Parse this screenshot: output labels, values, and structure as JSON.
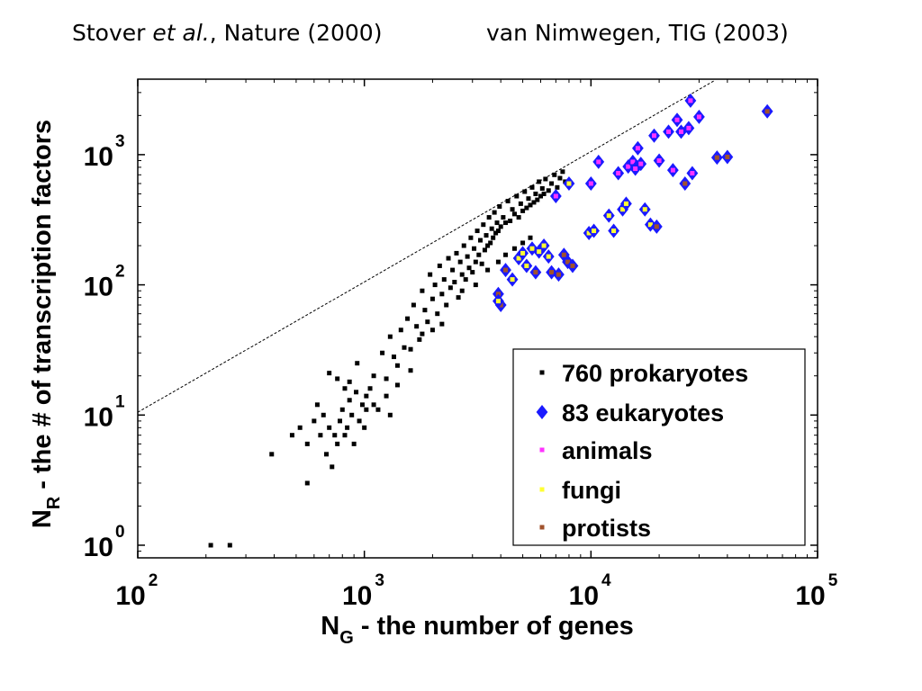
{
  "caption": {
    "left_author": "Stover",
    "left_etal": "et al.",
    "left_rest": ", Nature (2000)",
    "right": "van Nimwegen, TIG (2003)"
  },
  "colors": {
    "prokaryote": "#000000",
    "eukaryote": "#1a1aff",
    "animals": "#ff33ff",
    "fungi": "#ffff33",
    "protists": "#a0522d",
    "reference_line": "#000000"
  },
  "chart_data": {
    "type": "scatter",
    "x_scale": "log",
    "y_scale": "log",
    "xlim": [
      100,
      100000
    ],
    "ylim": [
      0.8,
      3800
    ],
    "grid": false,
    "legend_position": "bottom-right",
    "xlabel": {
      "main": "N",
      "sub": "G",
      "rest": " - the number of genes"
    },
    "ylabel": {
      "main": "N",
      "sub": "R",
      "rest": " - the # of transcription factors"
    },
    "x_ticks": [
      {
        "value": 100,
        "base": "10",
        "exp": "2"
      },
      {
        "value": 1000,
        "base": "10",
        "exp": "3"
      },
      {
        "value": 10000,
        "base": "10",
        "exp": "4"
      },
      {
        "value": 100000,
        "base": "10",
        "exp": "5"
      }
    ],
    "y_ticks": [
      {
        "value": 1,
        "base": "10",
        "exp": "0"
      },
      {
        "value": 10,
        "base": "10",
        "exp": "1"
      },
      {
        "value": 100,
        "base": "10",
        "exp": "2"
      },
      {
        "value": 1000,
        "base": "10",
        "exp": "3"
      }
    ],
    "reference_line": {
      "style": "dashed",
      "points": [
        [
          100,
          10.5
        ],
        [
          35000,
          3700
        ]
      ]
    },
    "legend": [
      {
        "label": "760 prokaryotes",
        "marker": "square",
        "color": "#000000"
      },
      {
        "label": "83 eukaryotes",
        "marker": "diamond",
        "color": "#1a1aff"
      },
      {
        "label": "animals",
        "marker": "square",
        "color": "#ff33ff"
      },
      {
        "label": "fungi",
        "marker": "square",
        "color": "#ffff33"
      },
      {
        "label": "protists",
        "marker": "square",
        "color": "#a0522d"
      }
    ],
    "series": [
      {
        "name": "760 prokaryotes",
        "marker": "square",
        "sample": "representative subset",
        "points": [
          [
            210,
            1
          ],
          [
            255,
            1
          ],
          [
            390,
            5
          ],
          [
            560,
            3
          ],
          [
            480,
            7
          ],
          [
            520,
            8
          ],
          [
            560,
            6
          ],
          [
            600,
            9
          ],
          [
            620,
            12
          ],
          [
            640,
            7
          ],
          [
            660,
            10
          ],
          [
            680,
            5
          ],
          [
            700,
            8
          ],
          [
            720,
            4
          ],
          [
            740,
            7
          ],
          [
            760,
            6
          ],
          [
            780,
            9
          ],
          [
            800,
            11
          ],
          [
            820,
            7
          ],
          [
            840,
            8
          ],
          [
            860,
            13
          ],
          [
            880,
            10
          ],
          [
            900,
            6
          ],
          [
            920,
            15
          ],
          [
            950,
            9
          ],
          [
            980,
            12
          ],
          [
            1000,
            8
          ],
          [
            1020,
            14
          ],
          [
            700,
            21
          ],
          [
            760,
            19
          ],
          [
            820,
            16
          ],
          [
            860,
            18
          ],
          [
            930,
            25
          ],
          [
            1020,
            11
          ],
          [
            1060,
            16
          ],
          [
            1100,
            20
          ],
          [
            1150,
            11
          ],
          [
            1200,
            30
          ],
          [
            1250,
            14
          ],
          [
            1300,
            40
          ],
          [
            1350,
            28
          ],
          [
            1400,
            17
          ],
          [
            1450,
            45
          ],
          [
            1500,
            33
          ],
          [
            1550,
            55
          ],
          [
            1600,
            22
          ],
          [
            1650,
            70
          ],
          [
            1700,
            48
          ],
          [
            1750,
            38
          ],
          [
            1800,
            90
          ],
          [
            1850,
            64
          ],
          [
            1900,
            52
          ],
          [
            1950,
            120
          ],
          [
            2000,
            78
          ],
          [
            2050,
            100
          ],
          [
            2100,
            60
          ],
          [
            2150,
            140
          ],
          [
            2200,
            85
          ],
          [
            2250,
            110
          ],
          [
            2300,
            70
          ],
          [
            2350,
            160
          ],
          [
            2400,
            95
          ],
          [
            2450,
            130
          ],
          [
            2500,
            105
          ],
          [
            2550,
            175
          ],
          [
            2600,
            80
          ],
          [
            2650,
            150
          ],
          [
            2700,
            120
          ],
          [
            2750,
            200
          ],
          [
            2800,
            110
          ],
          [
            2850,
            165
          ],
          [
            2900,
            135
          ],
          [
            2950,
            230
          ],
          [
            3000,
            125
          ],
          [
            3050,
            190
          ],
          [
            3100,
            150
          ],
          [
            3150,
            260
          ],
          [
            3200,
            170
          ],
          [
            3250,
            220
          ],
          [
            3300,
            145
          ],
          [
            3350,
            290
          ],
          [
            3400,
            185
          ],
          [
            3450,
            240
          ],
          [
            3500,
            200
          ],
          [
            3550,
            330
          ],
          [
            3600,
            210
          ],
          [
            3650,
            270
          ],
          [
            3700,
            230
          ],
          [
            3750,
            360
          ],
          [
            3800,
            250
          ],
          [
            3850,
            300
          ],
          [
            3900,
            260
          ],
          [
            3950,
            400
          ],
          [
            4000,
            280
          ],
          [
            4100,
            330
          ],
          [
            4200,
            300
          ],
          [
            4300,
            440
          ],
          [
            4400,
            310
          ],
          [
            4500,
            380
          ],
          [
            4600,
            350
          ],
          [
            4700,
            480
          ],
          [
            4800,
            330
          ],
          [
            4900,
            420
          ],
          [
            5000,
            370
          ],
          [
            5100,
            520
          ],
          [
            5200,
            390
          ],
          [
            5300,
            460
          ],
          [
            5400,
            410
          ],
          [
            5500,
            560
          ],
          [
            5600,
            430
          ],
          [
            5700,
            500
          ],
          [
            5800,
            450
          ],
          [
            5900,
            620
          ],
          [
            6000,
            480
          ],
          [
            6100,
            550
          ],
          [
            6200,
            500
          ],
          [
            6300,
            650
          ],
          [
            6500,
            530
          ],
          [
            6700,
            600
          ],
          [
            6900,
            700
          ],
          [
            7100,
            560
          ],
          [
            7300,
            660
          ],
          [
            7500,
            740
          ],
          [
            7700,
            620
          ],
          [
            2700,
            90
          ],
          [
            3100,
            100
          ],
          [
            3500,
            130
          ],
          [
            3900,
            150
          ],
          [
            4200,
            170
          ],
          [
            4600,
            190
          ],
          [
            5000,
            210
          ],
          [
            5400,
            230
          ],
          [
            1800,
            42
          ],
          [
            2000,
            45
          ],
          [
            2200,
            50
          ],
          [
            1600,
            32
          ],
          [
            1400,
            24
          ],
          [
            1250,
            19
          ],
          [
            1100,
            12
          ],
          [
            1300,
            10
          ]
        ]
      },
      {
        "name": "83 eukaryotes",
        "marker": "diamond",
        "points": [
          {
            "x": 3900,
            "y": 85,
            "group": "protists"
          },
          {
            "x": 4000,
            "y": 70,
            "group": "protists"
          },
          {
            "x": 3900,
            "y": 75,
            "group": "fungi"
          },
          {
            "x": 4200,
            "y": 130,
            "group": "protists"
          },
          {
            "x": 4500,
            "y": 110,
            "group": "fungi"
          },
          {
            "x": 4800,
            "y": 160,
            "group": "fungi"
          },
          {
            "x": 5000,
            "y": 175,
            "group": "fungi"
          },
          {
            "x": 5200,
            "y": 140,
            "group": "fungi"
          },
          {
            "x": 5500,
            "y": 190,
            "group": "fungi"
          },
          {
            "x": 5700,
            "y": 125,
            "group": "protists"
          },
          {
            "x": 5900,
            "y": 180,
            "group": "fungi"
          },
          {
            "x": 6200,
            "y": 200,
            "group": "fungi"
          },
          {
            "x": 6500,
            "y": 165,
            "group": "fungi"
          },
          {
            "x": 6700,
            "y": 125,
            "group": "protists"
          },
          {
            "x": 7000,
            "y": 480,
            "group": "animals"
          },
          {
            "x": 7200,
            "y": 120,
            "group": "protists"
          },
          {
            "x": 7600,
            "y": 170,
            "group": "protists"
          },
          {
            "x": 7900,
            "y": 150,
            "group": "protists"
          },
          {
            "x": 8000,
            "y": 600,
            "group": "fungi"
          },
          {
            "x": 8300,
            "y": 140,
            "group": "protists"
          },
          {
            "x": 9800,
            "y": 250,
            "group": "fungi"
          },
          {
            "x": 10000,
            "y": 600,
            "group": "animals"
          },
          {
            "x": 10300,
            "y": 260,
            "group": "fungi"
          },
          {
            "x": 10800,
            "y": 880,
            "group": "animals"
          },
          {
            "x": 12000,
            "y": 340,
            "group": "fungi"
          },
          {
            "x": 12600,
            "y": 260,
            "group": "fungi"
          },
          {
            "x": 13200,
            "y": 720,
            "group": "animals"
          },
          {
            "x": 13800,
            "y": 380,
            "group": "fungi"
          },
          {
            "x": 14300,
            "y": 420,
            "group": "fungi"
          },
          {
            "x": 14600,
            "y": 810,
            "group": "animals"
          },
          {
            "x": 15300,
            "y": 880,
            "group": "animals"
          },
          {
            "x": 15700,
            "y": 780,
            "group": "animals"
          },
          {
            "x": 16100,
            "y": 1120,
            "group": "animals"
          },
          {
            "x": 16600,
            "y": 850,
            "group": "animals"
          },
          {
            "x": 17300,
            "y": 380,
            "group": "fungi"
          },
          {
            "x": 18300,
            "y": 290,
            "group": "fungi"
          },
          {
            "x": 19500,
            "y": 280,
            "group": "protists"
          },
          {
            "x": 19000,
            "y": 1400,
            "group": "animals"
          },
          {
            "x": 20000,
            "y": 900,
            "group": "animals"
          },
          {
            "x": 22000,
            "y": 1500,
            "group": "animals"
          },
          {
            "x": 23000,
            "y": 760,
            "group": "animals"
          },
          {
            "x": 24000,
            "y": 1850,
            "group": "animals"
          },
          {
            "x": 25000,
            "y": 1500,
            "group": "animals"
          },
          {
            "x": 26000,
            "y": 600,
            "group": "protists"
          },
          {
            "x": 27000,
            "y": 1600,
            "group": "animals"
          },
          {
            "x": 27500,
            "y": 2600,
            "group": "animals"
          },
          {
            "x": 28000,
            "y": 720,
            "group": "animals"
          },
          {
            "x": 30000,
            "y": 1950,
            "group": "animals"
          },
          {
            "x": 36000,
            "y": 950,
            "group": "protists"
          },
          {
            "x": 40000,
            "y": 960,
            "group": "protists"
          },
          {
            "x": 60000,
            "y": 2150,
            "group": "protists"
          }
        ]
      }
    ]
  }
}
